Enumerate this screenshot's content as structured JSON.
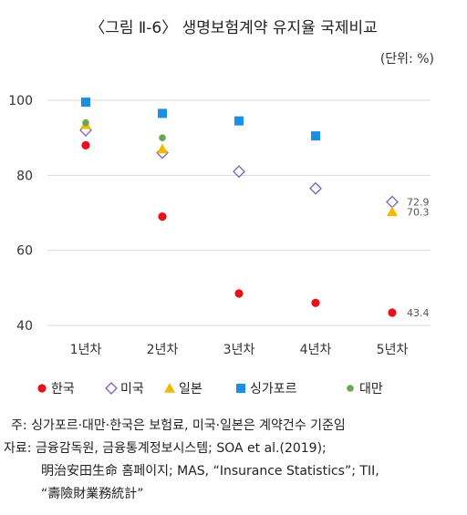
{
  "figure": {
    "title": "〈그림 Ⅱ-6〉 생명보험계약 유지율 국제비교",
    "unit": "(단위: %)"
  },
  "chart_data": {
    "type": "scatter",
    "categories": [
      "1년차",
      "2년차",
      "3년차",
      "4년차",
      "5년차"
    ],
    "ylim": [
      40,
      100
    ],
    "yticks": [
      40,
      60,
      80,
      100
    ],
    "grid": true,
    "legend_position": "bottom",
    "series": [
      {
        "name": "한국",
        "color": "#e8101a",
        "marker": "circle",
        "values": [
          88,
          69,
          48.5,
          46,
          43.4
        ]
      },
      {
        "name": "미국",
        "color": "#7b5fb8",
        "marker": "diamond",
        "values": [
          92,
          86,
          81,
          76.5,
          72.9
        ]
      },
      {
        "name": "일본",
        "color": "#f5b800",
        "marker": "triangle",
        "values": [
          93.5,
          87,
          null,
          null,
          70.3
        ]
      },
      {
        "name": "싱가포르",
        "color": "#1a8fe3",
        "marker": "square",
        "values": [
          99.5,
          96.5,
          94.5,
          90.5,
          null
        ]
      },
      {
        "name": "대만",
        "color": "#6aa84f",
        "marker": "circle-small",
        "values": [
          94,
          90,
          null,
          null,
          null
        ]
      }
    ],
    "data_labels": [
      {
        "text": "72.9",
        "category": "5년차",
        "value": 72.9
      },
      {
        "text": "70.3",
        "category": "5년차",
        "value": 70.3
      },
      {
        "text": "43.4",
        "category": "5년차",
        "value": 43.4
      }
    ]
  },
  "notes": {
    "note_label": "주:",
    "note_text": "싱가포르·대만·한국은 보험료, 미국·일본은 계약건수 기준임",
    "source_label": "자료:",
    "source_lines": [
      "금융감독원, 금융통계정보시스템; SOA et al.(2019);",
      "明治安田生命 홈페이지; MAS, “Insurance Statistics”; TII,",
      "“壽險財業務統計”"
    ]
  }
}
